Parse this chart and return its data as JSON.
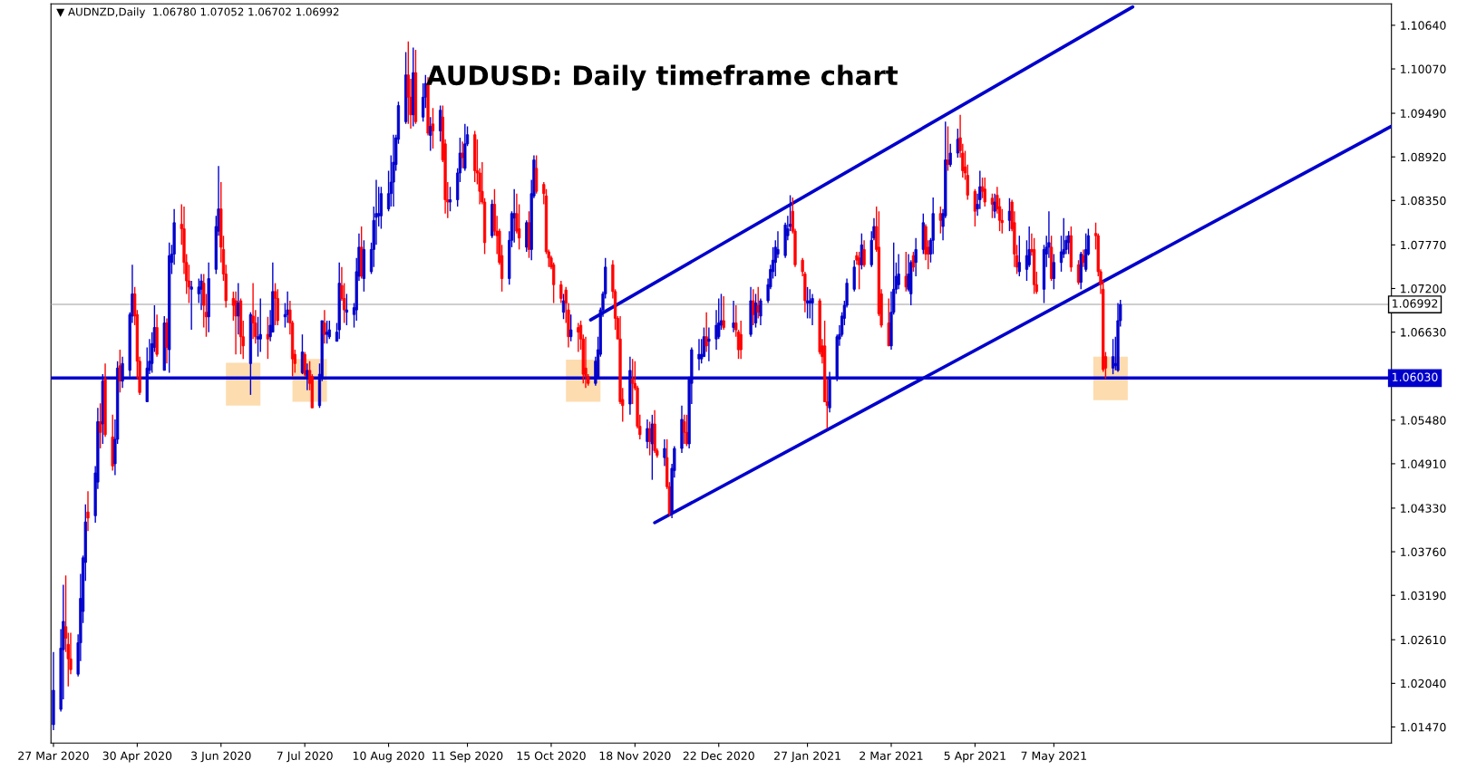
{
  "chart_data": {
    "type": "candlestick",
    "title": "AUDUSD: Daily timeframe chart",
    "annotations": [
      "▼ AUDNZD,Daily  1.06780 1.07052 1.06702 1.06992"
    ],
    "x": [
      "2020-03-27",
      "2020-03-30",
      "2020-03-31",
      "2020-04-01",
      "2020-04-02",
      "2020-04-03",
      "2020-04-06",
      "2020-04-07",
      "2020-04-08",
      "2020-04-09",
      "2020-04-10",
      "2020-04-13",
      "2020-04-14",
      "2020-04-15",
      "2020-04-16",
      "2020-04-17",
      "2020-04-20",
      "2020-04-21",
      "2020-04-22",
      "2020-04-23",
      "2020-04-24",
      "2020-04-27",
      "2020-04-28",
      "2020-04-29",
      "2020-04-30",
      "2020-05-01",
      "2020-05-04",
      "2020-05-05",
      "2020-05-06",
      "2020-05-07",
      "2020-05-08",
      "2020-05-11",
      "2020-05-12",
      "2020-05-13",
      "2020-05-14",
      "2020-05-15",
      "2020-05-18",
      "2020-05-19",
      "2020-05-20",
      "2020-05-21",
      "2020-05-22",
      "2020-05-25",
      "2020-05-26",
      "2020-05-27",
      "2020-05-28",
      "2020-05-29",
      "2020-06-01",
      "2020-06-02",
      "2020-06-03",
      "2020-06-04",
      "2020-06-05",
      "2020-06-08",
      "2020-06-09",
      "2020-06-10",
      "2020-06-11",
      "2020-06-12",
      "2020-06-15",
      "2020-06-16",
      "2020-06-17",
      "2020-06-18",
      "2020-06-19",
      "2020-06-22",
      "2020-06-23",
      "2020-06-24",
      "2020-06-25",
      "2020-06-26",
      "2020-06-29",
      "2020-06-30",
      "2020-07-01",
      "2020-07-02",
      "2020-07-03",
      "2020-07-06",
      "2020-07-07",
      "2020-07-08",
      "2020-07-09",
      "2020-07-10",
      "2020-07-13",
      "2020-07-14",
      "2020-07-15",
      "2020-07-16",
      "2020-07-17",
      "2020-07-20",
      "2020-07-21",
      "2020-07-22",
      "2020-07-23",
      "2020-07-24",
      "2020-07-27",
      "2020-07-28",
      "2020-07-29",
      "2020-07-30",
      "2020-07-31",
      "2020-08-03",
      "2020-08-04",
      "2020-08-05",
      "2020-08-06",
      "2020-08-07",
      "2020-08-10",
      "2020-08-11",
      "2020-08-12",
      "2020-08-13",
      "2020-08-14",
      "2020-08-17",
      "2020-08-18",
      "2020-08-19",
      "2020-08-20",
      "2020-08-21",
      "2020-08-24",
      "2020-08-25",
      "2020-08-26",
      "2020-08-27",
      "2020-08-28",
      "2020-08-31",
      "2020-09-01",
      "2020-09-02",
      "2020-09-03",
      "2020-09-04",
      "2020-09-07",
      "2020-09-08",
      "2020-09-09",
      "2020-09-10",
      "2020-09-11",
      "2020-09-14",
      "2020-09-15",
      "2020-09-16",
      "2020-09-17",
      "2020-09-18",
      "2020-09-21",
      "2020-09-22",
      "2020-09-23",
      "2020-09-24",
      "2020-09-25",
      "2020-09-28",
      "2020-09-29",
      "2020-09-30",
      "2020-10-01",
      "2020-10-02",
      "2020-10-05",
      "2020-10-06",
      "2020-10-07",
      "2020-10-08",
      "2020-10-09",
      "2020-10-12",
      "2020-10-13",
      "2020-10-14",
      "2020-10-15",
      "2020-10-16",
      "2020-10-19",
      "2020-10-20",
      "2020-10-21",
      "2020-10-22",
      "2020-10-23",
      "2020-10-26",
      "2020-10-27",
      "2020-10-28",
      "2020-10-29",
      "2020-10-30",
      "2020-11-02",
      "2020-11-03",
      "2020-11-04",
      "2020-11-05",
      "2020-11-06",
      "2020-11-09",
      "2020-11-10",
      "2020-11-11",
      "2020-11-12",
      "2020-11-13",
      "2020-11-16",
      "2020-11-17",
      "2020-11-18",
      "2020-11-19",
      "2020-11-20",
      "2020-11-23",
      "2020-11-24",
      "2020-11-25",
      "2020-11-26",
      "2020-11-27",
      "2020-11-30",
      "2020-12-01",
      "2020-12-02",
      "2020-12-03",
      "2020-12-04",
      "2020-12-07",
      "2020-12-08",
      "2020-12-09",
      "2020-12-10",
      "2020-12-11",
      "2020-12-14",
      "2020-12-15",
      "2020-12-16",
      "2020-12-17",
      "2020-12-18",
      "2020-12-21",
      "2020-12-22",
      "2020-12-23",
      "2020-12-24",
      "2020-12-28",
      "2020-12-29",
      "2020-12-30",
      "2020-12-31",
      "2021-01-04",
      "2021-01-05",
      "2021-01-06",
      "2021-01-07",
      "2021-01-08",
      "2021-01-11",
      "2021-01-12",
      "2021-01-13",
      "2021-01-14",
      "2021-01-15",
      "2021-01-18",
      "2021-01-19",
      "2021-01-20",
      "2021-01-21",
      "2021-01-22",
      "2021-01-25",
      "2021-01-26",
      "2021-01-27",
      "2021-01-28",
      "2021-01-29",
      "2021-02-01",
      "2021-02-02",
      "2021-02-03",
      "2021-02-04",
      "2021-02-05",
      "2021-02-08",
      "2021-02-09",
      "2021-02-10",
      "2021-02-11",
      "2021-02-12",
      "2021-02-15",
      "2021-02-16",
      "2021-02-17",
      "2021-02-18",
      "2021-02-19",
      "2021-02-22",
      "2021-02-23",
      "2021-02-24",
      "2021-02-25",
      "2021-02-26",
      "2021-03-01",
      "2021-03-02",
      "2021-03-03",
      "2021-03-04",
      "2021-03-05",
      "2021-03-08",
      "2021-03-09",
      "2021-03-10",
      "2021-03-11",
      "2021-03-12",
      "2021-03-15",
      "2021-03-16",
      "2021-03-17",
      "2021-03-18",
      "2021-03-19",
      "2021-03-22",
      "2021-03-23",
      "2021-03-24",
      "2021-03-25",
      "2021-03-26",
      "2021-03-29",
      "2021-03-30",
      "2021-03-31",
      "2021-04-01",
      "2021-04-02",
      "2021-04-05",
      "2021-04-06",
      "2021-04-07",
      "2021-04-08",
      "2021-04-09",
      "2021-04-12",
      "2021-04-13",
      "2021-04-14",
      "2021-04-15",
      "2021-04-16",
      "2021-04-19",
      "2021-04-20",
      "2021-04-21",
      "2021-04-22",
      "2021-04-23",
      "2021-04-26",
      "2021-04-27",
      "2021-04-28",
      "2021-04-29",
      "2021-04-30",
      "2021-05-03",
      "2021-05-04",
      "2021-05-05",
      "2021-05-06",
      "2021-05-07",
      "2021-05-10",
      "2021-05-11",
      "2021-05-12",
      "2021-05-13",
      "2021-05-14",
      "2021-05-17",
      "2021-05-18",
      "2021-05-19",
      "2021-05-20",
      "2021-05-21",
      "2021-05-24",
      "2021-05-25",
      "2021-05-26",
      "2021-05-27",
      "2021-05-28",
      "2021-05-31",
      "2021-06-01",
      "2021-06-02",
      "2021-06-03"
    ],
    "ohlc": [
      [
        1.015,
        1.0245,
        1.0143,
        1.0195
      ],
      [
        1.017,
        1.0275,
        1.0167,
        1.025
      ],
      [
        1.0248,
        1.0333,
        1.0183,
        1.0285
      ],
      [
        1.0278,
        1.0345,
        1.0245,
        1.0263
      ],
      [
        1.0255,
        1.027,
        1.02,
        1.0236
      ],
      [
        1.0236,
        1.027,
        1.0216,
        1.0222
      ],
      [
        1.0216,
        1.0268,
        1.0213,
        1.0257
      ],
      [
        1.0257,
        1.0347,
        1.0233,
        1.0315
      ],
      [
        1.0298,
        1.0371,
        1.0283,
        1.0368
      ],
      [
        1.0362,
        1.0438,
        1.0338,
        1.0415
      ],
      [
        1.0428,
        1.0455,
        1.0403,
        1.042
      ],
      [
        1.0423,
        1.0488,
        1.0414,
        1.0479
      ],
      [
        1.0467,
        1.0564,
        1.0458,
        1.0546
      ],
      [
        1.0546,
        1.057,
        1.0511,
        1.0532
      ],
      [
        1.0543,
        1.0608,
        1.0517,
        1.0599
      ],
      [
        1.0602,
        1.0622,
        1.0526,
        1.0529
      ],
      [
        1.0526,
        1.0555,
        1.0482,
        1.0488
      ],
      [
        1.0491,
        1.0549,
        1.0476,
        1.0523
      ],
      [
        1.0523,
        1.0625,
        1.0517,
        1.0616
      ],
      [
        1.0619,
        1.064,
        1.0584,
        1.0599
      ],
      [
        1.0599,
        1.0631,
        1.059,
        1.0622
      ],
      [
        1.0613,
        1.0689,
        1.0605,
        1.0686
      ],
      [
        1.0684,
        1.0751,
        1.0675,
        1.0713
      ],
      [
        1.0713,
        1.0722,
        1.0672,
        1.0684
      ],
      [
        1.0686,
        1.0692,
        1.0602,
        1.0625
      ],
      [
        1.0625,
        1.0631,
        1.0581,
        1.0584
      ],
      [
        1.0572,
        1.0643,
        1.0572,
        1.0616
      ],
      [
        1.0613,
        1.0654,
        1.0608,
        1.0625
      ],
      [
        1.0622,
        1.0663,
        1.061,
        1.0648
      ],
      [
        1.0643,
        1.0698,
        1.0637,
        1.0669
      ],
      [
        1.0669,
        1.0686,
        1.0631,
        1.0634
      ],
      [
        1.0613,
        1.0684,
        1.0613,
        1.0675
      ],
      [
        1.0675,
        1.0681,
        1.0622,
        1.0643
      ],
      [
        1.064,
        1.078,
        1.061,
        1.0763
      ],
      [
        1.0754,
        1.0777,
        1.0739,
        1.0765
      ],
      [
        1.0765,
        1.0824,
        1.0751,
        1.0806
      ],
      [
        1.0804,
        1.083,
        1.0777,
        1.0798
      ],
      [
        1.0798,
        1.0827,
        1.0739,
        1.0754
      ],
      [
        1.0754,
        1.0765,
        1.0713,
        1.073
      ],
      [
        1.073,
        1.0751,
        1.0701,
        1.0722
      ],
      [
        1.0719,
        1.073,
        1.0666,
        1.0722
      ],
      [
        1.0713,
        1.0733,
        1.0701,
        1.0722
      ],
      [
        1.0719,
        1.0739,
        1.0692,
        1.073
      ],
      [
        1.0727,
        1.0739,
        1.0669,
        1.0698
      ],
      [
        1.0689,
        1.0713,
        1.0657,
        1.0683
      ],
      [
        1.0683,
        1.0754,
        1.0663,
        1.0733
      ],
      [
        1.0745,
        1.0815,
        1.0739,
        1.0801
      ],
      [
        1.0795,
        1.088,
        1.0789,
        1.0824
      ],
      [
        1.0824,
        1.0859,
        1.0754,
        1.0774
      ],
      [
        1.0771,
        1.0789,
        1.073,
        1.0739
      ],
      [
        1.0739,
        1.0751,
        1.0695,
        1.0704
      ],
      [
        1.0707,
        1.0716,
        1.0678,
        1.0698
      ],
      [
        1.0704,
        1.0716,
        1.0634,
        1.0684
      ],
      [
        1.0684,
        1.0727,
        1.066,
        1.0701
      ],
      [
        1.0704,
        1.0707,
        1.0634,
        1.0657
      ],
      [
        1.0657,
        1.0678,
        1.0628,
        1.0645
      ],
      [
        1.0622,
        1.0689,
        1.0581,
        1.0686
      ],
      [
        1.0684,
        1.0727,
        1.0654,
        1.0675
      ],
      [
        1.0675,
        1.0692,
        1.0648,
        1.0657
      ],
      [
        1.0654,
        1.0683,
        1.0631,
        1.0657
      ],
      [
        1.0654,
        1.0707,
        1.0637,
        1.066
      ],
      [
        1.066,
        1.0683,
        1.0628,
        1.0654
      ],
      [
        1.0657,
        1.0692,
        1.0651,
        1.0672
      ],
      [
        1.0663,
        1.0754,
        1.0663,
        1.0716
      ],
      [
        1.0716,
        1.0727,
        1.0672,
        1.0707
      ],
      [
        1.0707,
        1.0719,
        1.0672,
        1.0678
      ],
      [
        1.0683,
        1.0701,
        1.0669,
        1.0686
      ],
      [
        1.0686,
        1.0716,
        1.0675,
        1.0692
      ],
      [
        1.0692,
        1.0704,
        1.066,
        1.0675
      ],
      [
        1.0675,
        1.0678,
        1.0605,
        1.0628
      ],
      [
        1.0634,
        1.064,
        1.061,
        1.0622
      ],
      [
        1.061,
        1.066,
        1.0608,
        1.0637
      ],
      [
        1.0634,
        1.0637,
        1.0605,
        1.0608
      ],
      [
        1.0605,
        1.0622,
        1.0587,
        1.0613
      ],
      [
        1.0613,
        1.0625,
        1.0587,
        1.0596
      ],
      [
        1.0605,
        1.0608,
        1.0564,
        1.0564
      ],
      [
        1.0567,
        1.0622,
        1.0564,
        1.0608
      ],
      [
        1.0602,
        1.0678,
        1.0599,
        1.0678
      ],
      [
        1.0675,
        1.0692,
        1.0648,
        1.066
      ],
      [
        1.066,
        1.0678,
        1.0648,
        1.0663
      ],
      [
        1.0657,
        1.0678,
        1.0654,
        1.0666
      ],
      [
        1.0651,
        1.0675,
        1.0651,
        1.0663
      ],
      [
        1.0666,
        1.0754,
        1.0654,
        1.0727
      ],
      [
        1.0724,
        1.0748,
        1.0704,
        1.0707
      ],
      [
        1.0707,
        1.0727,
        1.0675,
        1.0692
      ],
      [
        1.0689,
        1.0713,
        1.0672,
        1.0692
      ],
      [
        1.0686,
        1.0701,
        1.0669,
        1.0695
      ],
      [
        1.0692,
        1.076,
        1.0678,
        1.0742
      ],
      [
        1.0736,
        1.0792,
        1.073,
        1.0774
      ],
      [
        1.0774,
        1.0801,
        1.0733,
        1.0736
      ],
      [
        1.0733,
        1.0783,
        1.0716,
        1.0771
      ],
      [
        1.0742,
        1.078,
        1.0739,
        1.0771
      ],
      [
        1.0771,
        1.0827,
        1.0748,
        1.0809
      ],
      [
        1.0813,
        1.0862,
        1.0777,
        1.0818
      ],
      [
        1.0815,
        1.0853,
        1.0801,
        1.0818
      ],
      [
        1.0815,
        1.0853,
        1.0798,
        1.0844
      ],
      [
        1.0824,
        1.0874,
        1.0821,
        1.0844
      ],
      [
        1.0844,
        1.0894,
        1.0827,
        1.0859
      ],
      [
        1.0859,
        1.0921,
        1.0827,
        1.0885
      ],
      [
        1.0882,
        1.0921,
        1.0874,
        1.0917
      ],
      [
        1.0915,
        1.0964,
        1.0909,
        1.0959
      ],
      [
        1.0938,
        1.1029,
        1.0935,
        1.0999
      ],
      [
        1.0999,
        1.1043,
        1.0935,
        1.097
      ],
      [
        1.097,
        1.0994,
        1.0929,
        1.0947
      ],
      [
        1.0947,
        1.1035,
        1.0932,
        1.1002
      ],
      [
        1.1002,
        1.1032,
        1.0935,
        1.0938
      ],
      [
        1.0944,
        1.0988,
        1.0938,
        1.097
      ],
      [
        1.097,
        1.0999,
        1.0956,
        1.0988
      ],
      [
        1.0988,
        1.0996,
        1.092,
        1.0923
      ],
      [
        1.092,
        1.0944,
        1.09,
        1.0932
      ],
      [
        1.0935,
        1.0956,
        1.0903,
        1.0926
      ],
      [
        1.0926,
        1.0959,
        1.0912,
        1.0953
      ],
      [
        1.0944,
        1.0959,
        1.0885,
        1.0888
      ],
      [
        1.0909,
        1.0915,
        1.0818,
        1.0836
      ],
      [
        1.0836,
        1.0859,
        1.0812,
        1.0833
      ],
      [
        1.0833,
        1.0853,
        1.0821,
        1.0836
      ],
      [
        1.0836,
        1.0877,
        1.0827,
        1.0871
      ],
      [
        1.0871,
        1.0917,
        1.0859,
        1.0897
      ],
      [
        1.0897,
        1.0912,
        1.0877,
        1.0891
      ],
      [
        1.0877,
        1.0935,
        1.0874,
        1.0909
      ],
      [
        1.0909,
        1.0932,
        1.0906,
        1.0921
      ],
      [
        1.0921,
        1.0926,
        1.0859,
        1.0874
      ],
      [
        1.0874,
        1.0915,
        1.0856,
        1.0871
      ],
      [
        1.0871,
        1.0877,
        1.083,
        1.0847
      ],
      [
        1.0847,
        1.0885,
        1.083,
        1.0833
      ],
      [
        1.0833,
        1.0838,
        1.0765,
        1.078
      ],
      [
        1.0789,
        1.0836,
        1.0786,
        1.083
      ],
      [
        1.083,
        1.085,
        1.0789,
        1.0795
      ],
      [
        1.0795,
        1.0815,
        1.0765,
        1.0789
      ],
      [
        1.0795,
        1.0798,
        1.0751,
        1.0754
      ],
      [
        1.0763,
        1.0777,
        1.0716,
        1.0733
      ],
      [
        1.0733,
        1.0795,
        1.0725,
        1.0783
      ],
      [
        1.0783,
        1.0821,
        1.0774,
        1.0818
      ],
      [
        1.0812,
        1.085,
        1.078,
        1.0818
      ],
      [
        1.0818,
        1.0844,
        1.0792,
        1.0795
      ],
      [
        1.0798,
        1.083,
        1.0771,
        1.0786
      ],
      [
        1.0774,
        1.0809,
        1.0768,
        1.0806
      ],
      [
        1.0806,
        1.0821,
        1.076,
        1.0771
      ],
      [
        1.0771,
        1.0862,
        1.0757,
        1.0844
      ],
      [
        1.0841,
        1.0894,
        1.0838,
        1.0888
      ],
      [
        1.0877,
        1.0894,
        1.0844,
        1.0847
      ],
      [
        1.0856,
        1.0859,
        1.083,
        1.0844
      ],
      [
        1.0841,
        1.085,
        1.0765,
        1.0768
      ],
      [
        1.0768,
        1.0771,
        1.0748,
        1.076
      ],
      [
        1.076,
        1.0763,
        1.0745,
        1.0748
      ],
      [
        1.0751,
        1.0754,
        1.0701,
        1.0725
      ],
      [
        1.0725,
        1.073,
        1.0701,
        1.0707
      ],
      [
        1.0689,
        1.0713,
        1.068,
        1.0704
      ],
      [
        1.0718,
        1.0722,
        1.0675,
        1.0701
      ],
      [
        1.0692,
        1.0701,
        1.0643,
        1.0657
      ],
      [
        1.0657,
        1.0686,
        1.0651,
        1.0666
      ],
      [
        1.0669,
        1.0675,
        1.0637,
        1.0663
      ],
      [
        1.0672,
        1.0678,
        1.064,
        1.0654
      ],
      [
        1.0654,
        1.066,
        1.0596,
        1.0608
      ],
      [
        1.0616,
        1.0657,
        1.059,
        1.0605
      ],
      [
        1.0605,
        1.0608,
        1.0593,
        1.0596
      ],
      [
        1.0596,
        1.0631,
        1.0593,
        1.0625
      ],
      [
        1.0602,
        1.0657,
        1.0602,
        1.064
      ],
      [
        1.0634,
        1.0695,
        1.0631,
        1.0692
      ],
      [
        1.0692,
        1.0716,
        1.0683,
        1.0713
      ],
      [
        1.0713,
        1.076,
        1.0707,
        1.0748
      ],
      [
        1.0751,
        1.0757,
        1.0707,
        1.0716
      ],
      [
        1.0716,
        1.0719,
        1.0666,
        1.0681
      ],
      [
        1.0681,
        1.0684,
        1.0654,
        1.0654
      ],
      [
        1.0654,
        1.0684,
        1.0569,
        1.0572
      ],
      [
        1.0575,
        1.059,
        1.0546,
        1.0567
      ],
      [
        1.0569,
        1.0631,
        1.0555,
        1.0613
      ],
      [
        1.0602,
        1.0628,
        1.0569,
        1.0596
      ],
      [
        1.0596,
        1.0625,
        1.0587,
        1.059
      ],
      [
        1.059,
        1.0593,
        1.0537,
        1.054
      ],
      [
        1.054,
        1.0555,
        1.0523,
        1.0529
      ],
      [
        1.052,
        1.0549,
        1.0511,
        1.0537
      ],
      [
        1.0537,
        1.0546,
        1.0502,
        1.052
      ],
      [
        1.0517,
        1.0555,
        1.047,
        1.0543
      ],
      [
        1.0543,
        1.0561,
        1.0505,
        1.0508
      ],
      [
        1.0508,
        1.0511,
        1.0499,
        1.0502
      ],
      [
        1.0499,
        1.0523,
        1.0488,
        1.0511
      ],
      [
        1.0499,
        1.0523,
        1.0458,
        1.0461
      ],
      [
        1.0461,
        1.0467,
        1.0423,
        1.0426
      ],
      [
        1.0426,
        1.0491,
        1.042,
        1.0485
      ],
      [
        1.0482,
        1.0514,
        1.0473,
        1.0511
      ],
      [
        1.0511,
        1.0567,
        1.0505,
        1.0549
      ],
      [
        1.0546,
        1.0555,
        1.0517,
        1.0532
      ],
      [
        1.0532,
        1.0555,
        1.0514,
        1.0517
      ],
      [
        1.0517,
        1.0605,
        1.0511,
        1.0602
      ],
      [
        1.0596,
        1.0643,
        1.0569,
        1.064
      ],
      [
        1.0628,
        1.0654,
        1.0613,
        1.0634
      ],
      [
        1.0628,
        1.0654,
        1.0622,
        1.0634
      ],
      [
        1.0631,
        1.0669,
        1.0631,
        1.0657
      ],
      [
        1.0657,
        1.0689,
        1.0637,
        1.0645
      ],
      [
        1.0651,
        1.0669,
        1.0625,
        1.0654
      ],
      [
        1.0654,
        1.0692,
        1.064,
        1.0672
      ],
      [
        1.0657,
        1.0707,
        1.0654,
        1.0675
      ],
      [
        1.0672,
        1.0713,
        1.0666,
        1.0678
      ],
      [
        1.0678,
        1.071,
        1.0666,
        1.0669
      ],
      [
        1.0669,
        1.0704,
        1.0663,
        1.0675
      ],
      [
        1.0675,
        1.0698,
        1.0657,
        1.0666
      ],
      [
        1.0663,
        1.0666,
        1.0628,
        1.064
      ],
      [
        1.066,
        1.0678,
        1.0628,
        1.064
      ],
      [
        1.066,
        1.0722,
        1.0657,
        1.0704
      ],
      [
        1.0704,
        1.0719,
        1.0672,
        1.0686
      ],
      [
        1.0675,
        1.0713,
        1.0669,
        1.0701
      ],
      [
        1.0698,
        1.0722,
        1.0681,
        1.0689
      ],
      [
        1.0684,
        1.0707,
        1.0672,
        1.0704
      ],
      [
        1.0704,
        1.0733,
        1.0701,
        1.0725
      ],
      [
        1.0722,
        1.0751,
        1.0719,
        1.0745
      ],
      [
        1.0742,
        1.0774,
        1.0733,
        1.0757
      ],
      [
        1.0754,
        1.0783,
        1.0736,
        1.0774
      ],
      [
        1.0765,
        1.0795,
        1.076,
        1.0771
      ],
      [
        1.0763,
        1.0806,
        1.076,
        1.0803
      ],
      [
        1.0789,
        1.0815,
        1.0783,
        1.0798
      ],
      [
        1.0801,
        1.0842,
        1.0795,
        1.0804
      ],
      [
        1.0821,
        1.0839,
        1.0792,
        1.0795
      ],
      [
        1.0795,
        1.0798,
        1.0748,
        1.0751
      ],
      [
        1.0757,
        1.076,
        1.0736,
        1.0742
      ],
      [
        1.0739,
        1.0742,
        1.0689,
        1.0704
      ],
      [
        1.0701,
        1.0722,
        1.0681,
        1.0704
      ],
      [
        1.0701,
        1.0719,
        1.0681,
        1.0704
      ],
      [
        1.0701,
        1.0713,
        1.0672,
        1.0707
      ],
      [
        1.0704,
        1.0707,
        1.0634,
        1.0637
      ],
      [
        1.0645,
        1.0654,
        1.0622,
        1.0631
      ],
      [
        1.0645,
        1.0678,
        1.0572,
        1.0572
      ],
      [
        1.0572,
        1.0602,
        1.0537,
        1.0567
      ],
      [
        1.0564,
        1.0611,
        1.0558,
        1.0602
      ],
      [
        1.0602,
        1.066,
        1.0599,
        1.0657
      ],
      [
        1.0654,
        1.0672,
        1.0645,
        1.066
      ],
      [
        1.066,
        1.0689,
        1.0657,
        1.0684
      ],
      [
        1.0681,
        1.0704,
        1.0672,
        1.0698
      ],
      [
        1.0698,
        1.0733,
        1.0695,
        1.0727
      ],
      [
        1.0719,
        1.0757,
        1.0716,
        1.0748
      ],
      [
        1.0763,
        1.0768,
        1.0751,
        1.0757
      ],
      [
        1.076,
        1.0768,
        1.0719,
        1.0751
      ],
      [
        1.0751,
        1.0792,
        1.0745,
        1.0777
      ],
      [
        1.0771,
        1.0783,
        1.0748,
        1.0751
      ],
      [
        1.0751,
        1.0795,
        1.0748,
        1.0783
      ],
      [
        1.0786,
        1.0812,
        1.0783,
        1.0801
      ],
      [
        1.0801,
        1.0827,
        1.0768,
        1.0771
      ],
      [
        1.0774,
        1.0821,
        1.0684,
        1.0687
      ],
      [
        1.0713,
        1.0719,
        1.0669,
        1.0672
      ],
      [
        1.0675,
        1.0707,
        1.0645,
        1.0645
      ],
      [
        1.0645,
        1.0716,
        1.064,
        1.0689
      ],
      [
        1.0689,
        1.078,
        1.0686,
        1.0719
      ],
      [
        1.0719,
        1.0754,
        1.0713,
        1.0736
      ],
      [
        1.0725,
        1.0765,
        1.0719,
        1.0739
      ],
      [
        1.0736,
        1.0768,
        1.0716,
        1.0722
      ],
      [
        1.0719,
        1.0765,
        1.0716,
        1.0739
      ],
      [
        1.0713,
        1.0757,
        1.0698,
        1.0754
      ],
      [
        1.0763,
        1.0768,
        1.0742,
        1.0748
      ],
      [
        1.0754,
        1.0786,
        1.0736,
        1.0771
      ],
      [
        1.0771,
        1.0818,
        1.0765,
        1.0806
      ],
      [
        1.0801,
        1.0804,
        1.0757,
        1.0765
      ],
      [
        1.0774,
        1.0783,
        1.0745,
        1.0765
      ],
      [
        1.0765,
        1.0786,
        1.0754,
        1.0783
      ],
      [
        1.0783,
        1.0839,
        1.0765,
        1.0818
      ],
      [
        1.0818,
        1.0827,
        1.0792,
        1.0809
      ],
      [
        1.0801,
        1.0824,
        1.0783,
        1.0818
      ],
      [
        1.0815,
        1.0938,
        1.0812,
        1.0888
      ],
      [
        1.0888,
        1.0932,
        1.0874,
        1.0882
      ],
      [
        1.0882,
        1.0909,
        1.0879,
        1.0897
      ],
      [
        1.0897,
        1.0929,
        1.0891,
        1.0915
      ],
      [
        1.0917,
        1.0947,
        1.0891,
        1.09
      ],
      [
        1.0897,
        1.0909,
        1.0865,
        1.0874
      ],
      [
        1.0879,
        1.09,
        1.0862,
        1.0871
      ],
      [
        1.0868,
        1.0882,
        1.0836,
        1.0842
      ],
      [
        1.0847,
        1.085,
        1.0801,
        1.0821
      ],
      [
        1.0824,
        1.0844,
        1.0815,
        1.083
      ],
      [
        1.0836,
        1.0874,
        1.0824,
        1.0853
      ],
      [
        1.0853,
        1.0865,
        1.0838,
        1.0847
      ],
      [
        1.085,
        1.0865,
        1.0827,
        1.0833
      ],
      [
        1.0838,
        1.0844,
        1.0812,
        1.083
      ],
      [
        1.0821,
        1.0844,
        1.0812,
        1.0833
      ],
      [
        1.0842,
        1.0853,
        1.0818,
        1.0824
      ],
      [
        1.0827,
        1.0838,
        1.0795,
        1.0809
      ],
      [
        1.0809,
        1.0824,
        1.0792,
        1.0806
      ],
      [
        1.0809,
        1.0838,
        1.0795,
        1.0821
      ],
      [
        1.0833,
        1.0836,
        1.0795,
        1.0798
      ],
      [
        1.0806,
        1.0821,
        1.0748,
        1.0765
      ],
      [
        1.0763,
        1.0777,
        1.0739,
        1.0748
      ],
      [
        1.0742,
        1.0789,
        1.0736,
        1.0754
      ],
      [
        1.0745,
        1.0783,
        1.073,
        1.0763
      ],
      [
        1.0751,
        1.0801,
        1.0748,
        1.0771
      ],
      [
        1.0771,
        1.0792,
        1.0763,
        1.0768
      ],
      [
        1.0771,
        1.0786,
        1.0713,
        1.0725
      ],
      [
        1.0725,
        1.0742,
        1.0713,
        1.0716
      ],
      [
        1.0719,
        1.0777,
        1.0701,
        1.0771
      ],
      [
        1.0765,
        1.0789,
        1.0748,
        1.0774
      ],
      [
        1.0774,
        1.0821,
        1.076,
        1.078
      ],
      [
        1.0774,
        1.0789,
        1.073,
        1.0733
      ],
      [
        1.0733,
        1.0765,
        1.0719,
        1.0754
      ],
      [
        1.0754,
        1.0789,
        1.0742,
        1.0768
      ],
      [
        1.0765,
        1.0812,
        1.076,
        1.0771
      ],
      [
        1.0771,
        1.0789,
        1.0765,
        1.0783
      ],
      [
        1.078,
        1.0795,
        1.0765,
        1.0789
      ],
      [
        1.0789,
        1.0801,
        1.0742,
        1.0748
      ],
      [
        1.0751,
        1.0757,
        1.0725,
        1.0728
      ],
      [
        1.0728,
        1.0768,
        1.0719,
        1.0765
      ],
      [
        1.0763,
        1.0771,
        1.0748,
        1.0754
      ],
      [
        1.0745,
        1.0792,
        1.0742,
        1.0771
      ],
      [
        1.0765,
        1.0798,
        1.0763,
        1.0789
      ],
      [
        1.0792,
        1.0806,
        1.0771,
        1.0789
      ],
      [
        1.0789,
        1.0792,
        1.0736,
        1.0742
      ],
      [
        1.0742,
        1.0745,
        1.0713,
        1.0725
      ],
      [
        1.0719,
        1.073,
        1.0611,
        1.0614
      ],
      [
        1.0631,
        1.0637,
        1.0602,
        1.0616
      ],
      [
        1.0616,
        1.0654,
        1.0608,
        1.0631
      ],
      [
        1.0619,
        1.0657,
        1.0613,
        1.0622
      ],
      [
        1.0613,
        1.0701,
        1.0611,
        1.0678
      ],
      [
        1.0678,
        1.07052,
        1.06702,
        1.06992
      ]
    ],
    "colors": [
      "#0000cc",
      "#0000cc",
      "#0000cc",
      "#ff0000",
      "#ff0000",
      "#ff0000",
      "#0000cc",
      "#0000cc",
      "#0000cc",
      "#0000cc",
      "#ff0000",
      "#0000cc",
      "#0000cc",
      "#ff0000",
      "#0000cc",
      "#ff0000",
      "#ff0000",
      "#0000cc",
      "#0000cc",
      "#ff0000",
      "#0000cc",
      "#0000cc",
      "#0000cc",
      "#ff0000",
      "#ff0000",
      "#ff0000",
      "#0000cc",
      "#0000cc",
      "#0000cc",
      "#0000cc",
      "#ff0000",
      "#0000cc",
      "#ff0000",
      "#0000cc",
      "#0000cc",
      "#0000cc",
      "#ff0000",
      "#ff0000",
      "#ff0000",
      "#ff0000",
      "#0000cc",
      "#0000cc",
      "#0000cc",
      "#ff0000",
      "#ff0000",
      "#0000cc",
      "#0000cc",
      "#0000cc",
      "#ff0000",
      "#ff0000",
      "#ff0000",
      "#ff0000",
      "#ff0000",
      "#0000cc",
      "#ff0000",
      "#ff0000",
      "#0000cc",
      "#ff0000",
      "#ff0000",
      "#0000cc",
      "#0000cc",
      "#ff0000",
      "#0000cc",
      "#0000cc",
      "#ff0000",
      "#ff0000",
      "#0000cc",
      "#0000cc",
      "#ff0000",
      "#ff0000",
      "#ff0000",
      "#0000cc",
      "#ff0000",
      "#0000cc",
      "#ff0000",
      "#ff0000",
      "#0000cc",
      "#0000cc",
      "#ff0000",
      "#0000cc",
      "#0000cc",
      "#0000cc",
      "#0000cc",
      "#ff0000",
      "#ff0000",
      "#0000cc",
      "#0000cc",
      "#0000cc",
      "#0000cc",
      "#ff0000",
      "#0000cc",
      "#0000cc",
      "#0000cc",
      "#0000cc",
      "#0000cc",
      "#0000cc",
      "#0000cc",
      "#0000cc",
      "#0000cc",
      "#0000cc",
      "#0000cc",
      "#0000cc",
      "#ff0000",
      "#ff0000",
      "#0000cc",
      "#ff0000",
      "#0000cc",
      "#0000cc",
      "#ff0000",
      "#0000cc",
      "#ff0000",
      "#0000cc",
      "#ff0000",
      "#ff0000",
      "#ff0000",
      "#0000cc",
      "#0000cc",
      "#0000cc",
      "#ff0000",
      "#0000cc",
      "#0000cc",
      "#ff0000",
      "#ff0000",
      "#ff0000",
      "#ff0000",
      "#ff0000",
      "#0000cc",
      "#ff0000",
      "#ff0000",
      "#ff0000",
      "#ff0000",
      "#0000cc",
      "#0000cc",
      "#0000cc",
      "#ff0000",
      "#ff0000",
      "#0000cc",
      "#ff0000",
      "#0000cc",
      "#0000cc",
      "#ff0000",
      "#ff0000",
      "#ff0000",
      "#ff0000",
      "#ff0000",
      "#ff0000",
      "#ff0000",
      "#0000cc",
      "#ff0000",
      "#ff0000",
      "#0000cc",
      "#ff0000",
      "#ff0000",
      "#ff0000",
      "#ff0000",
      "#ff0000",
      "#0000cc",
      "#0000cc",
      "#0000cc",
      "#0000cc",
      "#0000cc",
      "#ff0000",
      "#ff0000",
      "#ff0000",
      "#ff0000",
      "#ff0000",
      "#0000cc",
      "#ff0000",
      "#ff0000",
      "#ff0000",
      "#ff0000",
      "#0000cc",
      "#ff0000",
      "#0000cc",
      "#ff0000",
      "#ff0000",
      "#0000cc",
      "#ff0000",
      "#ff0000",
      "#0000cc",
      "#0000cc",
      "#0000cc",
      "#ff0000",
      "#ff0000",
      "#0000cc",
      "#0000cc",
      "#0000cc",
      "#0000cc",
      "#0000cc",
      "#ff0000",
      "#0000cc",
      "#0000cc",
      "#0000cc",
      "#0000cc",
      "#ff0000",
      "#0000cc",
      "#ff0000",
      "#ff0000",
      "#ff0000",
      "#0000cc",
      "#ff0000",
      "#0000cc",
      "#ff0000",
      "#0000cc",
      "#0000cc",
      "#0000cc",
      "#0000cc",
      "#0000cc",
      "#0000cc",
      "#0000cc",
      "#0000cc",
      "#0000cc",
      "#ff0000",
      "#ff0000",
      "#ff0000",
      "#ff0000",
      "#0000cc",
      "#0000cc",
      "#0000cc",
      "#ff0000",
      "#ff0000",
      "#ff0000",
      "#ff0000",
      "#0000cc",
      "#0000cc",
      "#0000cc",
      "#0000cc",
      "#0000cc",
      "#0000cc",
      "#0000cc",
      "#ff0000",
      "#ff0000",
      "#0000cc",
      "#ff0000",
      "#0000cc",
      "#0000cc",
      "#ff0000",
      "#ff0000",
      "#ff0000",
      "#ff0000",
      "#0000cc",
      "#0000cc",
      "#0000cc",
      "#0000cc",
      "#ff0000",
      "#0000cc",
      "#0000cc",
      "#ff0000",
      "#0000cc",
      "#0000cc",
      "#ff0000",
      "#ff0000",
      "#0000cc",
      "#0000cc",
      "#ff0000",
      "#0000cc",
      "#0000cc",
      "#ff0000",
      "#0000cc",
      "#0000cc",
      "#ff0000",
      "#ff0000",
      "#ff0000",
      "#ff0000",
      "#ff0000",
      "#0000cc",
      "#0000cc",
      "#ff0000",
      "#ff0000",
      "#ff0000",
      "#0000cc",
      "#ff0000",
      "#ff0000",
      "#ff0000",
      "#0000cc",
      "#ff0000",
      "#ff0000",
      "#ff0000",
      "#0000cc",
      "#0000cc",
      "#0000cc",
      "#ff0000",
      "#ff0000",
      "#ff0000",
      "#0000cc",
      "#0000cc",
      "#0000cc",
      "#ff0000",
      "#0000cc",
      "#0000cc",
      "#0000cc",
      "#0000cc",
      "#0000cc",
      "#ff0000",
      "#ff0000",
      "#0000cc",
      "#ff0000",
      "#0000cc",
      "#0000cc",
      "#ff0000",
      "#ff0000",
      "#ff0000",
      "#ff0000",
      "#ff0000",
      "#0000cc",
      "#0000cc",
      "#0000cc",
      "#0000cc"
    ],
    "series": [
      {
        "type": "bar",
        "color": "#fddcaf",
        "x": [
          "2020-06-12",
          "2020-07-09",
          "2020-10-28",
          "2021-05-30"
        ],
        "values": [
          0.0056,
          0.0056,
          0.0055,
          0.0057
        ],
        "base": [
          1.0567,
          1.0572,
          1.0572,
          1.0574
        ]
      },
      {
        "type": "line",
        "color": "#0000cc",
        "x": [
          "2020-10-31",
          "2021-06-08"
        ],
        "values": [
          1.0679,
          1.1088
        ]
      },
      {
        "type": "line",
        "color": "#0000cc",
        "x": [
          "2020-11-26",
          "2021-09-21"
        ],
        "values": [
          1.0414,
          1.0932
        ]
      }
    ],
    "ref_lines": [
      {
        "axis": "y",
        "value": 1.0603,
        "label": "1.06030",
        "color": "#0000cc"
      },
      {
        "axis": "y",
        "value": 1.06992,
        "label": "1.06992",
        "color": "#a0a0a0"
      }
    ],
    "xlim": [
      "2020-03-26",
      "2021-09-21"
    ],
    "xticks": [
      {
        "value": "2020-03-27",
        "label": "27 Mar 2020"
      },
      {
        "value": "2020-04-30",
        "label": "30 Apr 2020"
      },
      {
        "value": "2020-06-03",
        "label": "3 Jun 2020"
      },
      {
        "value": "2020-07-07",
        "label": "7 Jul 2020"
      },
      {
        "value": "2020-08-10",
        "label": "10 Aug 2020"
      },
      {
        "value": "2020-09-11",
        "label": "11 Sep 2020"
      },
      {
        "value": "2020-10-15",
        "label": "15 Oct 2020"
      },
      {
        "value": "2020-11-18",
        "label": "18 Nov 2020"
      },
      {
        "value": "2020-12-22",
        "label": "22 Dec 2020"
      },
      {
        "value": "2021-01-27",
        "label": "27 Jan 2021"
      },
      {
        "value": "2021-03-02",
        "label": "2 Mar 2021"
      },
      {
        "value": "2021-04-05",
        "label": "5 Apr 2021"
      },
      {
        "value": "2021-05-07",
        "label": "7 May 2021"
      }
    ],
    "ylim": [
      1.0126,
      1.1092
    ],
    "yticks": [
      {
        "value": 1.1064,
        "label": "1.10640"
      },
      {
        "value": 1.1007,
        "label": "1.10070"
      },
      {
        "value": 1.0949,
        "label": "1.09490"
      },
      {
        "value": 1.0892,
        "label": "1.08920"
      },
      {
        "value": 1.0835,
        "label": "1.08350"
      },
      {
        "value": 1.0777,
        "label": "1.07770"
      },
      {
        "value": 1.072,
        "label": "1.07200"
      },
      {
        "value": 1.0663,
        "label": "1.06630"
      },
      {
        "value": 1.0548,
        "label": "1.05480"
      },
      {
        "value": 1.0491,
        "label": "1.04910"
      },
      {
        "value": 1.0433,
        "label": "1.04330"
      },
      {
        "value": 1.0376,
        "label": "1.03760"
      },
      {
        "value": 1.0319,
        "label": "1.03190"
      },
      {
        "value": 1.0261,
        "label": "1.02610"
      },
      {
        "value": 1.0204,
        "label": "1.02040"
      },
      {
        "value": 1.0147,
        "label": "1.01470"
      }
    ]
  }
}
